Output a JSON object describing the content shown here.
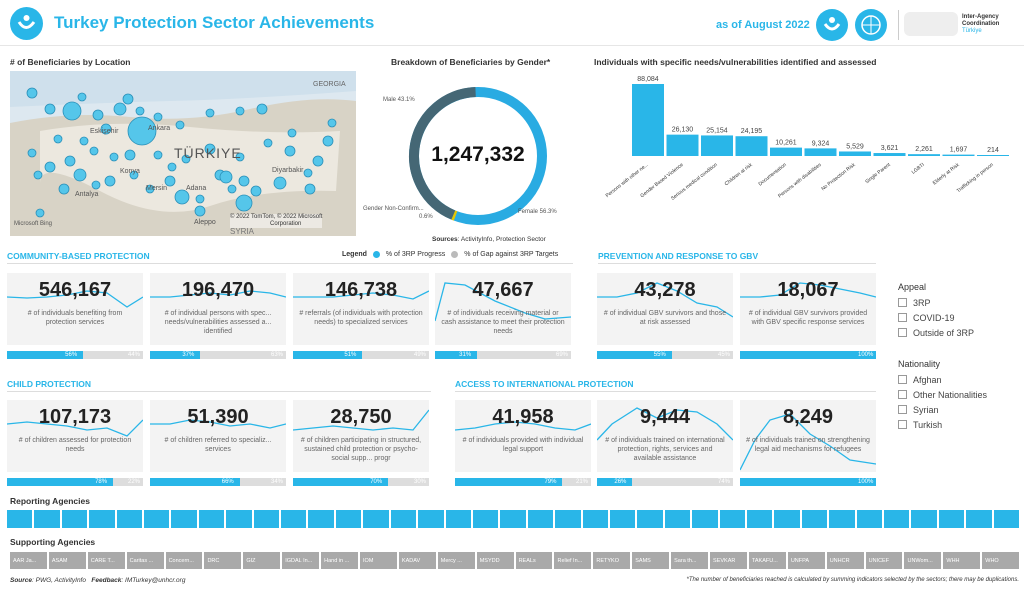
{
  "header": {
    "title": "Turkey Protection Sector Achievements",
    "as_of": "as of August 2022",
    "iac": "Inter-Agency Coordination",
    "iac_sub": "Türkiye"
  },
  "map": {
    "title": "# of Beneficiaries by Location",
    "country_label": "TÜRKIYE",
    "labels": [
      "GEORGIA",
      "Ankara",
      "Eskişehir",
      "Antalya",
      "Mersin",
      "Konya",
      "Diyarbakir",
      "Aleppo",
      "SYRIA",
      "Adana"
    ],
    "credit1": "© 2022 TomTom, © 2022 Microsoft",
    "credit2": "Corporation",
    "bing": "Microsoft Bing"
  },
  "donut": {
    "title": "Breakdown of Beneficiaries by Gender*",
    "total": "1,247,332",
    "male": "Male 43.1%",
    "female": "Female 56.3%",
    "nonconf": "Gender Non-Confirm...",
    "nonconf_pct": "0.6%",
    "sources_b": "Sources",
    "sources": ": ActivityInfo, Protection Sector"
  },
  "chart_data": {
    "type": "bar",
    "title": "Individuals with specific needs/vulnerabilities identified and assessed",
    "categories": [
      "Persons with other ne...",
      "Gender Based Violence",
      "Serious medical condition",
      "Children at risk",
      "Documentation",
      "Persons with disabilities",
      "No Protection Risk",
      "Single Parent",
      "LGBTI",
      "Elderly at Risk",
      "Trafficking in person"
    ],
    "values": [
      88084,
      26130,
      25154,
      24195,
      10261,
      9324,
      5529,
      3621,
      2261,
      1697,
      214
    ],
    "value_labels": [
      "88,084",
      "26,130",
      "25,154",
      "24,195",
      "10,261",
      "9,324",
      "5,529",
      "3,621",
      "2,261",
      "1,697",
      "214"
    ]
  },
  "legend": {
    "label": "Legend",
    "progress": "% of 3RP Progress",
    "gap": "% of Gap against 3RP Targets"
  },
  "sections": {
    "cbp": "COMMUNITY-BASED PROTECTION",
    "gbv": "PREVENTION AND RESPONSE TO GBV",
    "child": "CHILD PROTECTION",
    "access": "ACCESS TO INTERNATIONAL PROTECTION"
  },
  "cards": [
    {
      "num": "546,167",
      "desc": "# of individuals benefiting from protection services",
      "p": "56%",
      "g": "44%",
      "pv": 56
    },
    {
      "num": "196,470",
      "desc": "# of individual persons with spec... needs/vulnerabilities assessed a... identified",
      "p": "37%",
      "g": "63%",
      "pv": 37
    },
    {
      "num": "146,738",
      "desc": "# referrals (of individuals with protection needs) to specialized services",
      "p": "51%",
      "g": "49%",
      "pv": 51
    },
    {
      "num": "47,667",
      "desc": "# of individuals receiving material or cash assistance to meet their protection needs",
      "p": "31%",
      "g": "69%",
      "pv": 31
    },
    {
      "num": "43,278",
      "desc": "# of individual GBV survivors and those at risk assessed",
      "p": "55%",
      "g": "45%",
      "pv": 55
    },
    {
      "num": "18,067",
      "desc": "# of individual GBV survivors provided with GBV specific response services",
      "p": "100%",
      "g": "",
      "pv": 100
    },
    {
      "num": "107,173",
      "desc": "# of children assessed for protection needs",
      "p": "78%",
      "g": "22%",
      "pv": 78
    },
    {
      "num": "51,390",
      "desc": "# of children referred to specializ... services",
      "p": "66%",
      "g": "34%",
      "pv": 66
    },
    {
      "num": "28,750",
      "desc": "# of children participating in structured, sustained child protection or psycho-social supp... progr",
      "p": "70%",
      "g": "30%",
      "pv": 70
    },
    {
      "num": "41,958",
      "desc": "# of individuals provided with individual legal support",
      "p": "79%",
      "g": "21%",
      "pv": 79
    },
    {
      "num": "9,444",
      "desc": "# of individuals trained on international protection, rights, services and available assistance",
      "p": "26%",
      "g": "74%",
      "pv": 26
    },
    {
      "num": "8,249",
      "desc": "# of individuals trained on strengthening legal aid mechanisms for refugees",
      "p": "100%",
      "g": "",
      "pv": 100
    }
  ],
  "filters": {
    "appeal_title": "Appeal",
    "appeal": [
      "3RP",
      "COVID-19",
      "Outside of 3RP"
    ],
    "nat_title": "Nationality",
    "nat": [
      "Afghan",
      "Other Nationalities",
      "Syrian",
      "Turkish"
    ]
  },
  "reporting": {
    "title": "Reporting Agencies"
  },
  "supporting": {
    "title": "Supporting Agencies",
    "items": [
      "AAR Ja...",
      "ASAM",
      "CARE T...",
      "Caritas ...",
      "Concern...",
      "DRC",
      "GIZ",
      "IGDAL In...",
      "Hand in ...",
      "IOM",
      "KADAV",
      "Mercy ...",
      "MSYDD",
      "REALs",
      "Relief In...",
      "RETYKO",
      "SAMS",
      "Sara th...",
      "SEVKAR",
      "TAKAFU...",
      "UNFPA",
      "UNHCR",
      "UNICEF",
      "UNWom...",
      "WHH",
      "WHO"
    ]
  },
  "footer": {
    "source_b": "Source",
    "source": ": PWG, ActivityInfo",
    "feedback_b": "Feedback",
    "feedback": ": IMTurkey@unhcr.org",
    "note": "*The number of beneficiaries reached is calculated by summing indicators selected by the sectors; there may be duplications."
  }
}
